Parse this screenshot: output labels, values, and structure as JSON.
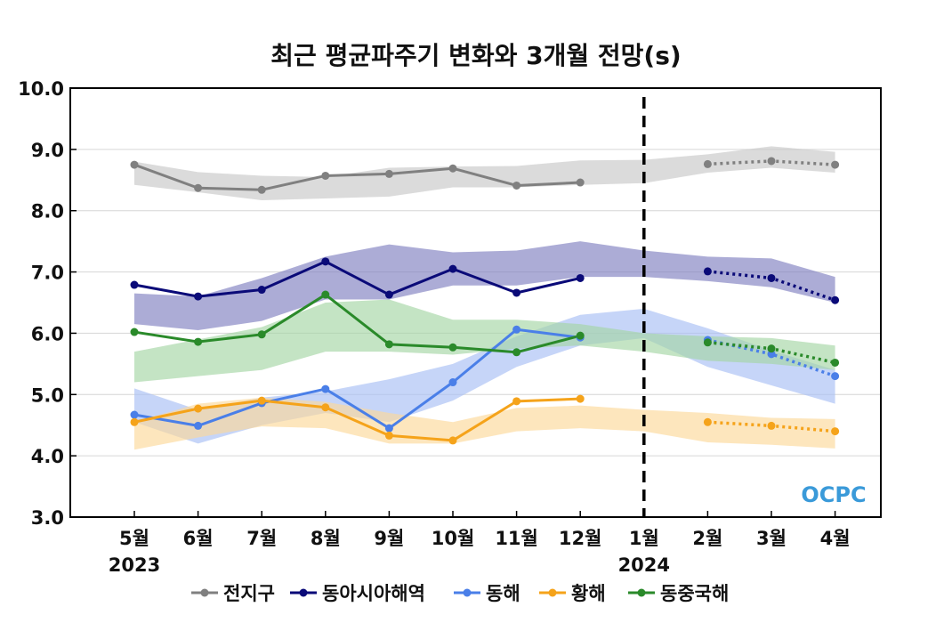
{
  "chart_data": {
    "type": "line",
    "title": "최근 평균파주기 변화와 3개월 전망(s)",
    "xlabel": "",
    "ylabel": "",
    "ylim": [
      3.0,
      10.0
    ],
    "yticks": [
      "3.0",
      "4.0",
      "5.0",
      "6.0",
      "7.0",
      "8.0",
      "9.0",
      "10.0"
    ],
    "categories": [
      "5월",
      "6월",
      "7월",
      "8월",
      "9월",
      "10월",
      "11월",
      "12월",
      "1월",
      "2월",
      "3월",
      "4월"
    ],
    "year_labels": [
      {
        "index": 0,
        "label": "2023"
      },
      {
        "index": 8,
        "label": "2024"
      }
    ],
    "divider_index": 8,
    "series": [
      {
        "name": "전지구",
        "color": "#808080",
        "band_color": "#c8c8c8",
        "observed": [
          8.75,
          8.37,
          8.34,
          8.57,
          8.6,
          8.69,
          8.41,
          8.46,
          null,
          null,
          null,
          null
        ],
        "forecast": [
          null,
          null,
          null,
          null,
          null,
          null,
          null,
          null,
          null,
          8.76,
          8.81,
          8.75
        ],
        "band_low": [
          8.42,
          8.3,
          8.17,
          8.2,
          8.23,
          8.38,
          8.38,
          8.42,
          8.45,
          8.62,
          8.7,
          8.62
        ],
        "band_high": [
          8.8,
          8.63,
          8.57,
          8.55,
          8.7,
          8.72,
          8.73,
          8.82,
          8.83,
          8.92,
          9.05,
          8.96
        ]
      },
      {
        "name": "동아시아해역",
        "color": "#0a0a78",
        "band_color": "#8080c0",
        "observed": [
          6.79,
          6.6,
          6.71,
          7.17,
          6.63,
          7.05,
          6.66,
          6.9,
          null,
          null,
          null,
          null
        ],
        "forecast": [
          null,
          null,
          null,
          null,
          null,
          null,
          null,
          null,
          null,
          7.01,
          6.9,
          6.54
        ],
        "band_low": [
          6.15,
          6.05,
          6.2,
          6.55,
          6.55,
          6.78,
          6.78,
          6.92,
          6.92,
          6.85,
          6.75,
          6.5
        ],
        "band_high": [
          6.65,
          6.6,
          6.9,
          7.25,
          7.45,
          7.32,
          7.35,
          7.5,
          7.35,
          7.25,
          7.22,
          6.92
        ]
      },
      {
        "name": "동해",
        "color": "#4a7fe8",
        "band_color": "#a8bff5",
        "observed": [
          4.67,
          4.49,
          4.86,
          5.09,
          4.45,
          5.2,
          6.06,
          5.93,
          null,
          null,
          null,
          null
        ],
        "forecast": [
          null,
          null,
          null,
          null,
          null,
          null,
          null,
          null,
          null,
          5.89,
          5.66,
          5.3
        ],
        "band_low": [
          4.55,
          4.2,
          4.5,
          4.7,
          4.55,
          4.9,
          5.45,
          5.8,
          5.92,
          5.45,
          5.15,
          4.85
        ],
        "band_high": [
          5.1,
          4.75,
          4.95,
          5.05,
          5.25,
          5.5,
          5.95,
          6.3,
          6.4,
          6.08,
          5.72,
          5.4
        ]
      },
      {
        "name": "황해",
        "color": "#f5a31a",
        "band_color": "#fcd89a",
        "observed": [
          4.55,
          4.77,
          4.9,
          4.79,
          4.33,
          4.25,
          4.89,
          4.93,
          null,
          null,
          null,
          null
        ],
        "forecast": [
          null,
          null,
          null,
          null,
          null,
          null,
          null,
          null,
          null,
          4.55,
          4.49,
          4.4
        ],
        "band_low": [
          4.1,
          4.3,
          4.48,
          4.45,
          4.2,
          4.2,
          4.4,
          4.45,
          4.4,
          4.22,
          4.18,
          4.12
        ],
        "band_high": [
          4.55,
          4.85,
          4.95,
          4.88,
          4.7,
          4.55,
          4.78,
          4.82,
          4.75,
          4.7,
          4.62,
          4.6
        ]
      },
      {
        "name": "동중국해",
        "color": "#2a8a2a",
        "band_color": "#a5d6a5",
        "observed": [
          6.02,
          5.86,
          5.98,
          6.63,
          5.82,
          5.77,
          5.69,
          5.96,
          null,
          null,
          null,
          null
        ],
        "forecast": [
          null,
          null,
          null,
          null,
          null,
          null,
          null,
          null,
          null,
          5.85,
          5.75,
          5.52
        ],
        "band_low": [
          5.2,
          5.3,
          5.4,
          5.7,
          5.7,
          5.65,
          5.75,
          5.8,
          5.7,
          5.55,
          5.5,
          5.4
        ],
        "band_high": [
          5.7,
          5.9,
          6.1,
          6.5,
          6.55,
          6.22,
          6.22,
          6.15,
          6.0,
          5.95,
          5.92,
          5.8
        ]
      }
    ],
    "logo": "OCPC"
  }
}
